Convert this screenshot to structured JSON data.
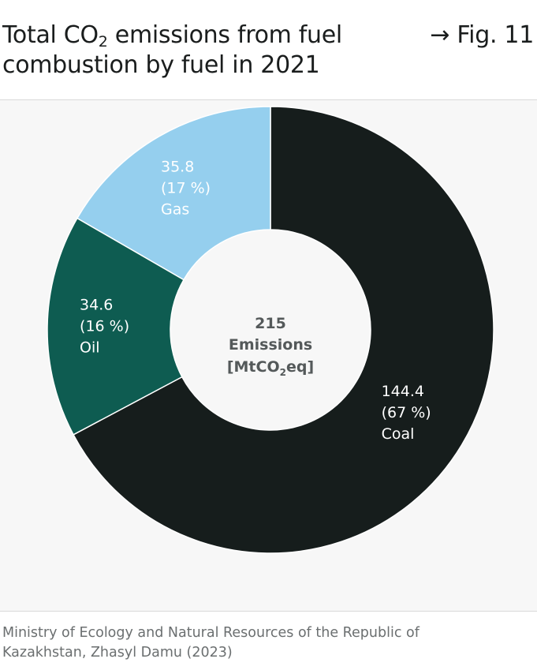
{
  "header": {
    "title_prefix": "Total CO",
    "title_sub": "2",
    "title_suffix": " emissions from fuel combustion by fuel in 2021",
    "figure_ref": "→ Fig. 11"
  },
  "chart_data": {
    "type": "pie",
    "variant": "donut",
    "categories": [
      "Coal",
      "Oil",
      "Gas"
    ],
    "values": [
      144.4,
      34.6,
      35.8
    ],
    "shares": [
      "(67 %)",
      "(16 %)",
      "(17 %)"
    ],
    "value_labels": [
      "144.4",
      "34.6",
      "35.8"
    ],
    "colors": [
      "#161d1c",
      "#0e5c51",
      "#95cfee"
    ],
    "label_colors": [
      "#ffffff",
      "#ffffff",
      "#ffffff"
    ],
    "start_angle_deg": 0,
    "direction": "clockwise",
    "center": {
      "value": "215",
      "line1": "Emissions",
      "line2_prefix": "[MtCO",
      "line2_sub": "2",
      "line2_suffix": "eq]"
    }
  },
  "footer": {
    "source": "Ministry of Ecology and Natural Resources of the Republic of Kazakhstan, Zhasyl Damu (2023)"
  }
}
